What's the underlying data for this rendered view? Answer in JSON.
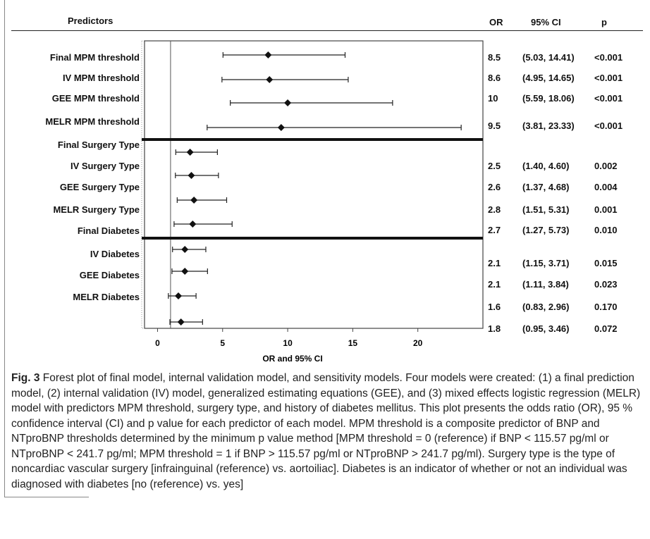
{
  "header": {
    "predictors": "Predictors",
    "or": "OR",
    "ci": "95% CI",
    "p": "p"
  },
  "predictor_labels": [
    "Final MPM threshold",
    "IV MPM threshold",
    "GEE MPM threshold",
    "MELR MPM threshold",
    "Final Surgery Type",
    "IV Surgery Type",
    "GEE Surgery Type",
    "MELR Surgery Type",
    "Final Diabetes",
    "IV Diabetes",
    "GEE Diabetes",
    "MELR Diabetes"
  ],
  "stats": [
    {
      "or": "8.5",
      "ci": "(5.03, 14.41)",
      "p": "<0.001"
    },
    {
      "or": "8.6",
      "ci": "(4.95, 14.65)",
      "p": "<0.001"
    },
    {
      "or": "10",
      "ci": "(5.59, 18.06)",
      "p": "<0.001"
    },
    {
      "or": "9.5",
      "ci": "(3.81, 23.33)",
      "p": "<0.001"
    },
    {
      "or": "2.5",
      "ci": "(1.40, 4.60)",
      "p": "0.002"
    },
    {
      "or": "2.6",
      "ci": "(1.37, 4.68)",
      "p": "0.004"
    },
    {
      "or": "2.8",
      "ci": "(1.51, 5.31)",
      "p": "0.001"
    },
    {
      "or": "2.7",
      "ci": "(1.27, 5.73)",
      "p": "0.010"
    },
    {
      "or": "2.1",
      "ci": "(1.15, 3.71)",
      "p": "0.015"
    },
    {
      "or": "2.1",
      "ci": "(1.11, 3.84)",
      "p": "0.023"
    },
    {
      "or": "1.6",
      "ci": "(0.83, 2.96)",
      "p": "0.170"
    },
    {
      "or": "1.8",
      "ci": "(0.95, 3.46)",
      "p": "0.072"
    }
  ],
  "caption": {
    "fig_label": "Fig. 3",
    "text": "Forest plot of final model, internal validation model, and sensitivity models. Four models were created: (1) a final prediction model, (2) internal validation (IV) model, generalized estimating equations (GEE), and (3) mixed effects logistic regression (MELR) model with predictors MPM threshold, surgery type, and history of diabetes mellitus. This plot presents the odds ratio (OR), 95 % confidence interval (CI) and p value for each predictor of each model. MPM threshold is a composite predictor of BNP and NTproBNP thresholds determined by the minimum p value method [MPM threshold = 0 (reference) if BNP < 115.57 pg/ml or NTproBNP < 241.7 pg/ml; MPM threshold = 1 if BNP > 115.57 pg/ml or NTproBNP > 241.7 pg/ml). Surgery type is the type of noncardiac vascular surgery [infrainguinal (reference) vs. aortoiliac]. Diabetes is an indicator of whether or not an individual was diagnosed with diabetes [no (reference) vs. yes]"
  },
  "chart_data": {
    "type": "forest",
    "xlabel": "OR and 95% CI",
    "xlim": [
      -1,
      25
    ],
    "xticks": [
      "0",
      "5",
      "10",
      "15",
      "20"
    ],
    "reference_line": 1,
    "rows": [
      {
        "estimate": 8.5,
        "lower": 5.03,
        "upper": 14.41
      },
      {
        "estimate": 8.6,
        "lower": 4.95,
        "upper": 14.65
      },
      {
        "estimate": 10,
        "lower": 5.59,
        "upper": 18.06
      },
      {
        "estimate": 9.5,
        "lower": 3.81,
        "upper": 23.33
      },
      {
        "estimate": 2.5,
        "lower": 1.4,
        "upper": 4.6
      },
      {
        "estimate": 2.6,
        "lower": 1.37,
        "upper": 4.68
      },
      {
        "estimate": 2.8,
        "lower": 1.51,
        "upper": 5.31
      },
      {
        "estimate": 2.7,
        "lower": 1.27,
        "upper": 5.73
      },
      {
        "estimate": 2.1,
        "lower": 1.15,
        "upper": 3.71
      },
      {
        "estimate": 2.1,
        "lower": 1.11,
        "upper": 3.84
      },
      {
        "estimate": 1.6,
        "lower": 0.83,
        "upper": 2.96
      },
      {
        "estimate": 1.8,
        "lower": 0.95,
        "upper": 3.46
      }
    ],
    "group_separators_after_row": [
      4,
      8
    ]
  }
}
